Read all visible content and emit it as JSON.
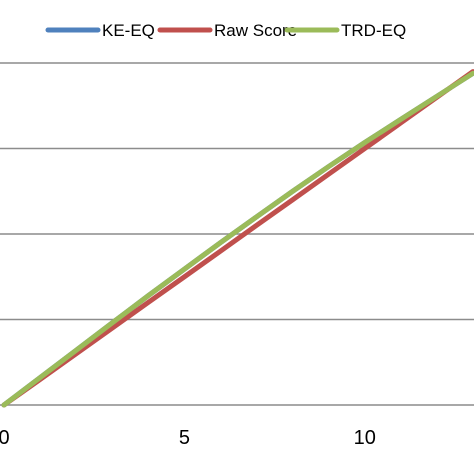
{
  "chart_data": {
    "type": "line",
    "title": "",
    "xlabel": "",
    "ylabel": "",
    "xlim": [
      0,
      13
    ],
    "ylim": [
      0,
      4
    ],
    "x_ticks": [
      0,
      5,
      10
    ],
    "x_tick_labels": [
      "0",
      "5",
      "10"
    ],
    "grid": "horizontal",
    "legend_position": "top",
    "legend": [
      "KE-EQ",
      "Raw Score",
      "TRD-EQ"
    ],
    "series": [
      {
        "name": "KE-EQ",
        "color": "#4F81BD",
        "x": [
          0,
          1,
          2,
          3,
          4,
          5,
          6,
          7,
          8,
          9,
          10,
          11,
          12,
          13
        ],
        "y": [
          0,
          0.32,
          0.64,
          0.96,
          1.28,
          1.59,
          1.9,
          2.2,
          2.5,
          2.79,
          3.07,
          3.34,
          3.61,
          3.88
        ]
      },
      {
        "name": "Raw Score",
        "color": "#C0504D",
        "x": [
          0,
          1,
          2,
          3,
          4,
          5,
          6,
          7,
          8,
          9,
          10,
          11,
          12,
          13
        ],
        "y": [
          0,
          0.3,
          0.6,
          0.9,
          1.2,
          1.5,
          1.8,
          2.1,
          2.4,
          2.7,
          3.0,
          3.3,
          3.6,
          3.9
        ]
      },
      {
        "name": "TRD-EQ",
        "color": "#9BBB59",
        "x": [
          0,
          1,
          2,
          3,
          4,
          5,
          6,
          7,
          8,
          9,
          10,
          11,
          12,
          13
        ],
        "y": [
          0,
          0.32,
          0.64,
          0.96,
          1.28,
          1.59,
          1.9,
          2.2,
          2.5,
          2.79,
          3.07,
          3.34,
          3.61,
          3.88
        ]
      }
    ]
  }
}
